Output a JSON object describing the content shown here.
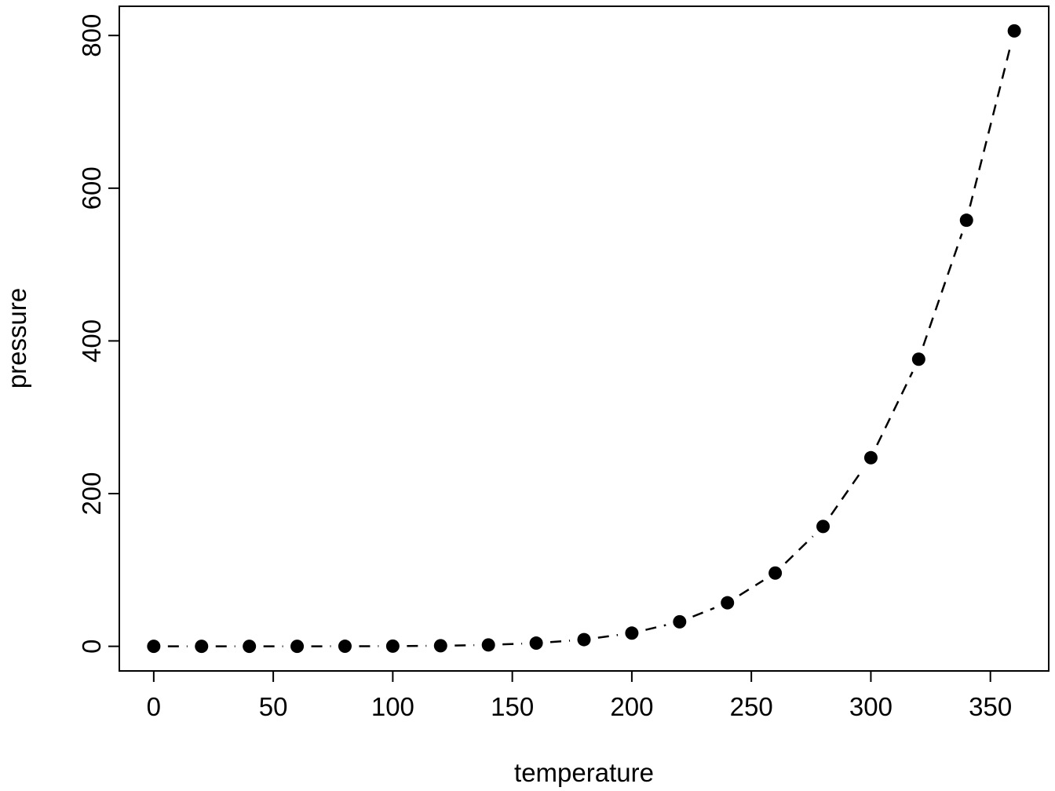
{
  "chart_data": {
    "type": "scatter",
    "title": "",
    "xlabel": "temperature",
    "ylabel": "pressure",
    "x": [
      0,
      20,
      40,
      60,
      80,
      100,
      120,
      140,
      160,
      180,
      200,
      220,
      240,
      260,
      280,
      300,
      320,
      340,
      360
    ],
    "y": [
      0.0002,
      0.0012,
      0.006,
      0.03,
      0.09,
      0.27,
      0.75,
      1.85,
      4.2,
      8.8,
      17.3,
      32.1,
      57.0,
      96.0,
      157.0,
      247.0,
      376.0,
      558.0,
      806.0
    ],
    "x_ticks": [
      0,
      50,
      100,
      150,
      200,
      250,
      300,
      350
    ],
    "y_ticks": [
      0,
      200,
      400,
      600,
      800
    ],
    "xlim": [
      0,
      360
    ],
    "ylim": [
      0,
      806
    ],
    "grid": false,
    "legend": "none",
    "style": {
      "marker": "filled-circle",
      "point_color": "#000000",
      "line_color": "#000000",
      "line_style": "dashed",
      "axis_color": "#000000",
      "background": "#ffffff"
    }
  }
}
